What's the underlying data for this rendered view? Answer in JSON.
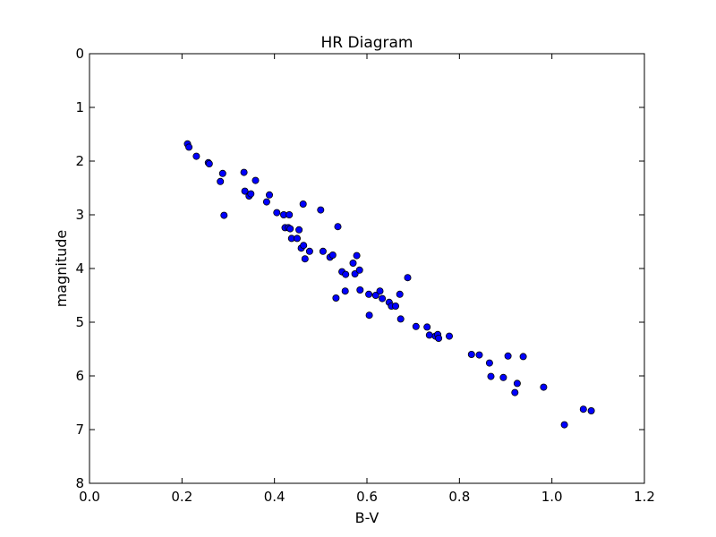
{
  "chart_data": {
    "type": "scatter",
    "title": "HR Diagram",
    "xlabel": "B-V",
    "ylabel": "magnitude",
    "xlim": [
      0.0,
      1.2
    ],
    "ylim": [
      0,
      8
    ],
    "y_inverted": true,
    "grid": false,
    "legend": "none",
    "marker_color": "#0000ff",
    "x_ticks": [
      "0.0",
      "0.2",
      "0.4",
      "0.6",
      "0.8",
      "1.0",
      "1.2"
    ],
    "y_ticks": [
      "0",
      "1",
      "2",
      "3",
      "4",
      "5",
      "6",
      "7",
      "8"
    ],
    "x": [
      0.212,
      0.215,
      0.231,
      0.257,
      0.259,
      0.283,
      0.288,
      0.291,
      0.334,
      0.336,
      0.345,
      0.349,
      0.359,
      0.383,
      0.389,
      0.405,
      0.42,
      0.423,
      0.43,
      0.432,
      0.434,
      0.437,
      0.449,
      0.453,
      0.458,
      0.462,
      0.463,
      0.466,
      0.476,
      0.5,
      0.505,
      0.52,
      0.526,
      0.533,
      0.537,
      0.546,
      0.553,
      0.554,
      0.57,
      0.574,
      0.578,
      0.584,
      0.585,
      0.604,
      0.605,
      0.619,
      0.628,
      0.633,
      0.648,
      0.653,
      0.662,
      0.671,
      0.673,
      0.688,
      0.706,
      0.73,
      0.735,
      0.748,
      0.753,
      0.755,
      0.778,
      0.826,
      0.843,
      0.865,
      0.868,
      0.895,
      0.905,
      0.92,
      0.925,
      0.938,
      0.982,
      1.027,
      1.068,
      1.085
    ],
    "y": [
      1.68,
      1.74,
      1.91,
      2.03,
      2.05,
      2.38,
      2.23,
      3.01,
      2.21,
      2.56,
      2.65,
      2.61,
      2.36,
      2.76,
      2.63,
      2.96,
      3.0,
      3.24,
      3.24,
      3.0,
      3.26,
      3.44,
      3.44,
      3.28,
      3.62,
      2.8,
      3.57,
      3.82,
      3.68,
      2.91,
      3.68,
      3.79,
      3.75,
      4.55,
      3.22,
      4.06,
      4.42,
      4.11,
      3.9,
      4.1,
      3.76,
      4.03,
      4.4,
      4.48,
      4.87,
      4.5,
      4.42,
      4.56,
      4.63,
      4.7,
      4.7,
      4.48,
      4.94,
      4.17,
      5.08,
      5.09,
      5.24,
      5.26,
      5.23,
      5.3,
      5.26,
      5.6,
      5.61,
      5.76,
      6.01,
      6.03,
      5.63,
      6.31,
      6.14,
      5.64,
      6.21,
      6.91,
      6.62,
      6.65
    ]
  }
}
